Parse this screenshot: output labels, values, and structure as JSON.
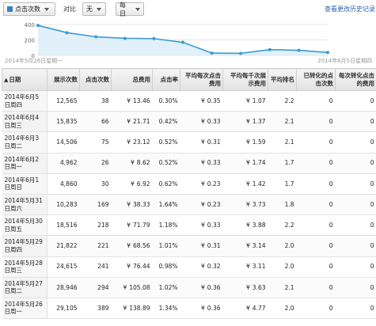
{
  "toolbar": {
    "metric_label": "点击次数",
    "compare_label": "对比",
    "compare_value": "无",
    "granularity_value": "每日",
    "history_link": "查看更改历史记录",
    "metric_color": "#3b7dc8"
  },
  "chart_data": {
    "type": "area",
    "y_ticks": [
      0,
      200,
      400
    ],
    "ylim": [
      0,
      400
    ],
    "start_label": "2014年5月26日星期一",
    "end_label": "2014年6月5日星期四",
    "values": [
      389,
      294,
      241,
      221,
      218,
      169,
      30,
      26,
      75,
      66,
      38
    ],
    "color": "#3b9ad6"
  },
  "table": {
    "headers": [
      "日期",
      "展示次数",
      "点击次数",
      "总费用",
      "点击率",
      "平均每次点击费用",
      "平均每千次展示费用",
      "平均排名",
      "已转化的点击次数",
      "每次转化点击的费用"
    ],
    "currency": "¥",
    "rows": [
      {
        "date": "2014年6月5日周四",
        "impr": "12,565",
        "clicks": "38",
        "cost": "13.46",
        "ctr": "0.30%",
        "cpc": "0.35",
        "cpm": "1.07",
        "pos": "2.2",
        "conv": "0",
        "cpa": "0"
      },
      {
        "date": "2014年6月4日周三",
        "impr": "15,835",
        "clicks": "66",
        "cost": "21.71",
        "ctr": "0.42%",
        "cpc": "0.33",
        "cpm": "1.37",
        "pos": "2.1",
        "conv": "0",
        "cpa": "0"
      },
      {
        "date": "2014年6月3日周二",
        "impr": "14,506",
        "clicks": "75",
        "cost": "23.12",
        "ctr": "0.52%",
        "cpc": "0.31",
        "cpm": "1.59",
        "pos": "2.1",
        "conv": "0",
        "cpa": "0"
      },
      {
        "date": "2014年6月2日周一",
        "impr": "4,962",
        "clicks": "26",
        "cost": "8.62",
        "ctr": "0.52%",
        "cpc": "0.33",
        "cpm": "1.74",
        "pos": "1.7",
        "conv": "0",
        "cpa": "0"
      },
      {
        "date": "2014年6月1日周日",
        "impr": "4,860",
        "clicks": "30",
        "cost": "6.92",
        "ctr": "0.62%",
        "cpc": "0.23",
        "cpm": "1.42",
        "pos": "1.7",
        "conv": "0",
        "cpa": "0"
      },
      {
        "date": "2014年5月31日周六",
        "impr": "10,283",
        "clicks": "169",
        "cost": "38.33",
        "ctr": "1.64%",
        "cpc": "0.23",
        "cpm": "3.73",
        "pos": "1.8",
        "conv": "0",
        "cpa": "0"
      },
      {
        "date": "2014年5月30日周五",
        "impr": "18,516",
        "clicks": "218",
        "cost": "71.79",
        "ctr": "1.18%",
        "cpc": "0.33",
        "cpm": "3.88",
        "pos": "2.2",
        "conv": "0",
        "cpa": "0"
      },
      {
        "date": "2014年5月29日周四",
        "impr": "21,822",
        "clicks": "221",
        "cost": "68.56",
        "ctr": "1.01%",
        "cpc": "0.31",
        "cpm": "3.14",
        "pos": "2.0",
        "conv": "0",
        "cpa": "0"
      },
      {
        "date": "2014年5月28日周三",
        "impr": "24,615",
        "clicks": "241",
        "cost": "76.44",
        "ctr": "0.98%",
        "cpc": "0.32",
        "cpm": "3.11",
        "pos": "2.0",
        "conv": "0",
        "cpa": "0"
      },
      {
        "date": "2014年5月27日周二",
        "impr": "28,946",
        "clicks": "294",
        "cost": "105.08",
        "ctr": "1.02%",
        "cpc": "0.36",
        "cpm": "3.63",
        "pos": "2.1",
        "conv": "0",
        "cpa": "0"
      },
      {
        "date": "2014年5月26日周一",
        "impr": "29,105",
        "clicks": "389",
        "cost": "138.89",
        "ctr": "1.34%",
        "cpc": "0.36",
        "cpm": "4.77",
        "pos": "2.0",
        "conv": "0",
        "cpa": "0"
      }
    ]
  }
}
